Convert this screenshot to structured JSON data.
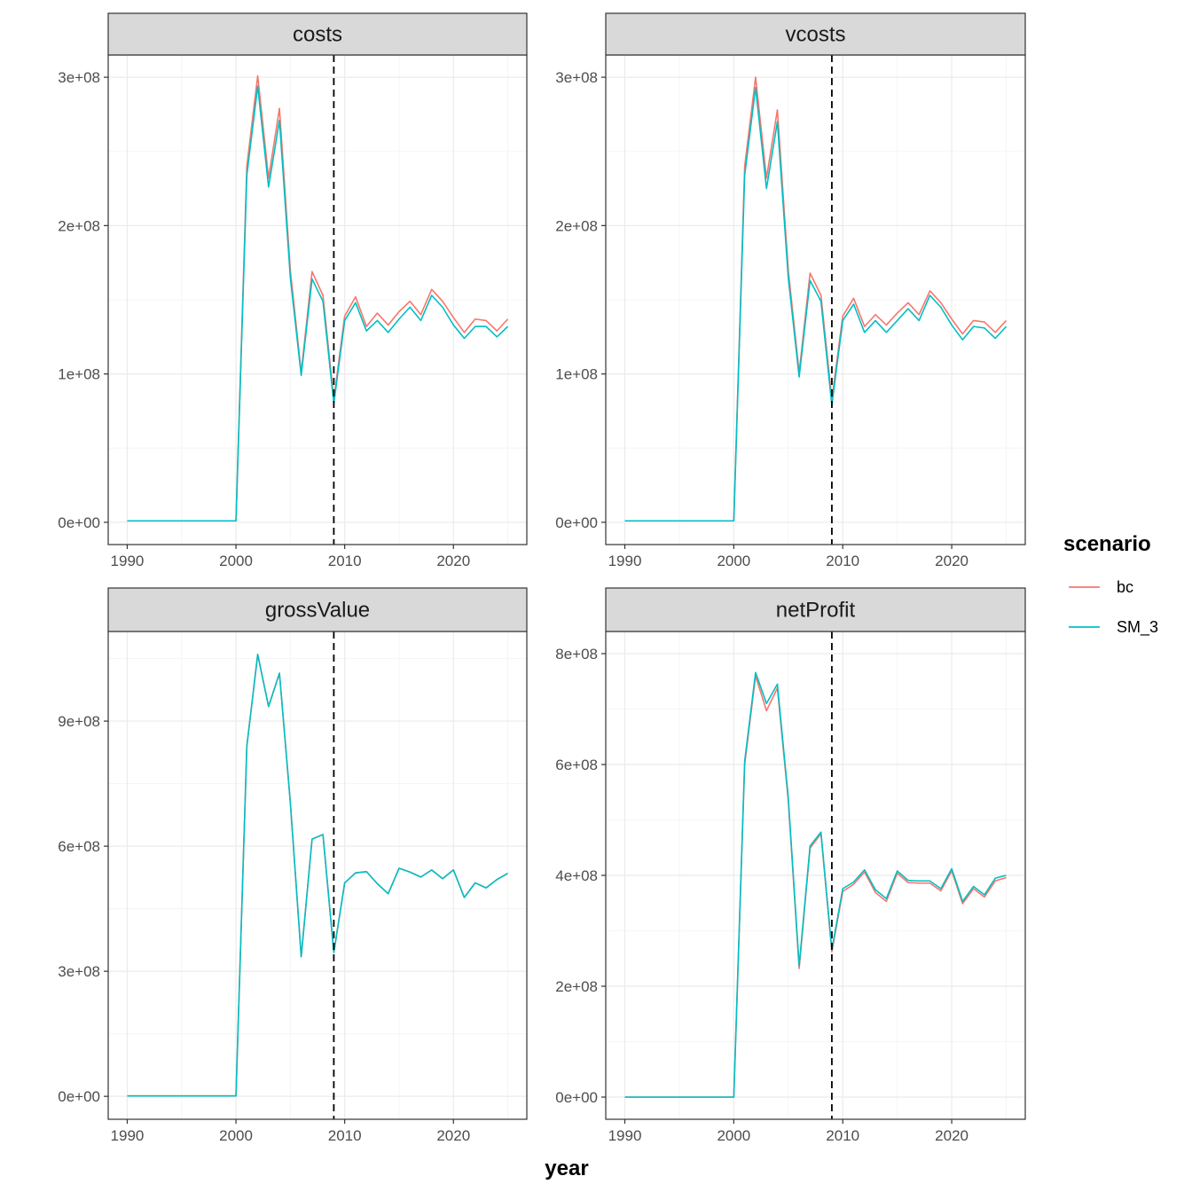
{
  "colors": {
    "bc": "#F8766D",
    "SM_3": "#00BFC4",
    "strip_fill": "#D9D9D9",
    "grid_major": "#EBEBEB",
    "grid_minor": "#F5F5F5",
    "panel_border": "#333333"
  },
  "chart_data": {
    "type": "line",
    "layout": "facet-grid-2x2",
    "x_axis_title": "year",
    "legend": {
      "title": "scenario",
      "entries": [
        "bc",
        "SM_3"
      ],
      "placement": "right"
    },
    "vline_x": 2009,
    "x_ticks": [
      1990,
      2000,
      2010,
      2020
    ],
    "x_tick_labels": [
      "1990",
      "2000",
      "2010",
      "2020"
    ],
    "xlim": [
      1988.25,
      2026.75
    ],
    "years": [
      1990,
      1991,
      1992,
      1993,
      1994,
      1995,
      1996,
      1997,
      1998,
      1999,
      2000,
      2001,
      2002,
      2003,
      2004,
      2005,
      2006,
      2007,
      2008,
      2009,
      2010,
      2011,
      2012,
      2013,
      2014,
      2015,
      2016,
      2017,
      2018,
      2019,
      2020,
      2021,
      2022,
      2023,
      2024,
      2025
    ],
    "panels": [
      {
        "title": "costs",
        "ylim": [
          -15000000,
          315000000
        ],
        "y_ticks": [
          0,
          100000000,
          200000000,
          300000000
        ],
        "y_tick_labels": [
          "0e+00",
          "1e+08",
          "2e+08",
          "3e+08"
        ],
        "series": [
          {
            "name": "bc",
            "values": [
              1000000,
              1000000,
              1000000,
              1000000,
              1000000,
              1000000,
              1000000,
              1000000,
              1000000,
              1000000,
              1000000,
              240000000,
              301000000,
              232000000,
              279000000,
              170000000,
              101000000,
              169000000,
              153000000,
              83000000,
              139000000,
              152000000,
              132000000,
              141000000,
              133000000,
              142000000,
              149000000,
              140000000,
              157000000,
              149000000,
              138000000,
              128000000,
              137000000,
              136000000,
              129000000,
              137000000
            ]
          },
          {
            "name": "SM_3",
            "values": [
              1000000,
              1000000,
              1000000,
              1000000,
              1000000,
              1000000,
              1000000,
              1000000,
              1000000,
              1000000,
              1000000,
              234000000,
              294000000,
              226000000,
              271000000,
              165000000,
              99000000,
              164000000,
              149000000,
              80000000,
              136000000,
              148000000,
              129000000,
              136000000,
              128000000,
              137000000,
              145000000,
              136000000,
              153000000,
              145000000,
              133000000,
              124000000,
              132000000,
              132000000,
              125000000,
              132000000
            ]
          }
        ]
      },
      {
        "title": "vcosts",
        "ylim": [
          -15000000,
          315000000
        ],
        "y_ticks": [
          0,
          100000000,
          200000000,
          300000000
        ],
        "y_tick_labels": [
          "0e+00",
          "1e+08",
          "2e+08",
          "3e+08"
        ],
        "series": [
          {
            "name": "bc",
            "values": [
              1000000,
              1000000,
              1000000,
              1000000,
              1000000,
              1000000,
              1000000,
              1000000,
              1000000,
              1000000,
              1000000,
              240000000,
              300000000,
              232000000,
              278000000,
              170000000,
              101000000,
              168000000,
              153000000,
              83000000,
              139000000,
              151000000,
              132000000,
              140000000,
              133000000,
              141000000,
              148000000,
              140000000,
              156000000,
              148000000,
              137000000,
              127000000,
              136000000,
              135000000,
              128000000,
              136000000
            ]
          },
          {
            "name": "SM_3",
            "values": [
              1000000,
              1000000,
              1000000,
              1000000,
              1000000,
              1000000,
              1000000,
              1000000,
              1000000,
              1000000,
              1000000,
              234000000,
              293000000,
              225000000,
              270000000,
              165000000,
              98000000,
              163000000,
              149000000,
              79000000,
              136000000,
              147000000,
              128000000,
              136000000,
              128000000,
              136000000,
              144000000,
              136000000,
              153000000,
              145000000,
              133000000,
              123000000,
              132000000,
              131000000,
              124000000,
              132000000
            ]
          }
        ]
      },
      {
        "title": "grossValue",
        "ylim": [
          -55000000,
          1115000000
        ],
        "y_ticks": [
          0,
          300000000,
          600000000,
          900000000
        ],
        "y_tick_labels": [
          "0e+00",
          "3e+08",
          "6e+08",
          "9e+08"
        ],
        "series": [
          {
            "name": "bc",
            "values": [
              1000000,
              1000000,
              1000000,
              1000000,
              1000000,
              1000000,
              1000000,
              1000000,
              1000000,
              1000000,
              1000000,
              840000000,
              1060000000,
              935000000,
              1015000000,
              705000000,
              335000000,
              617000000,
              628000000,
              345000000,
              512000000,
              536000000,
              539000000,
              510000000,
              486000000,
              547000000,
              538000000,
              526000000,
              543000000,
              522000000,
              543000000,
              477000000,
              512000000,
              500000000,
              520000000,
              535000000
            ]
          },
          {
            "name": "SM_3",
            "values": [
              1000000,
              1000000,
              1000000,
              1000000,
              1000000,
              1000000,
              1000000,
              1000000,
              1000000,
              1000000,
              1000000,
              840000000,
              1060000000,
              935000000,
              1015000000,
              705000000,
              335000000,
              617000000,
              628000000,
              345000000,
              512000000,
              536000000,
              539000000,
              510000000,
              486000000,
              547000000,
              538000000,
              526000000,
              543000000,
              522000000,
              543000000,
              477000000,
              512000000,
              500000000,
              520000000,
              535000000
            ]
          }
        ]
      },
      {
        "title": "netProfit",
        "ylim": [
          -40000000,
          840000000
        ],
        "y_ticks": [
          0,
          200000000,
          400000000,
          600000000,
          800000000
        ],
        "y_tick_labels": [
          "0e+00",
          "2e+08",
          "4e+08",
          "6e+08",
          "8e+08"
        ],
        "series": [
          {
            "name": "bc",
            "values": [
              0,
              0,
              0,
              0,
              0,
              0,
              0,
              0,
              0,
              0,
              0,
              600000000,
              760000000,
              697000000,
              738000000,
              535000000,
              232000000,
              449000000,
              475000000,
              262000000,
              371000000,
              384000000,
              406000000,
              369000000,
              353000000,
              404000000,
              387000000,
              386000000,
              386000000,
              372000000,
              408000000,
              349000000,
              376000000,
              361000000,
              390000000,
              396000000
            ]
          },
          {
            "name": "SM_3",
            "values": [
              0,
              0,
              0,
              0,
              0,
              0,
              0,
              0,
              0,
              0,
              0,
              606000000,
              766000000,
              710000000,
              745000000,
              540000000,
              237000000,
              453000000,
              478000000,
              266000000,
              376000000,
              388000000,
              410000000,
              374000000,
              358000000,
              408000000,
              391000000,
              390000000,
              390000000,
              376000000,
              412000000,
              353000000,
              380000000,
              365000000,
              395000000,
              400000000
            ]
          }
        ]
      }
    ]
  }
}
